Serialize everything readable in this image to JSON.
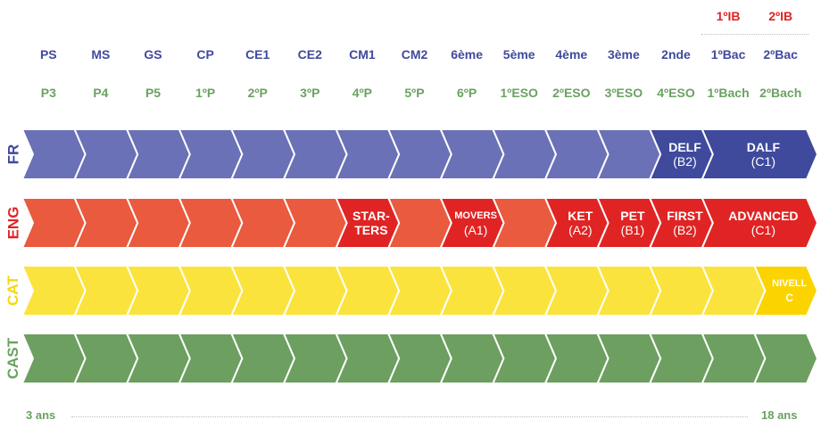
{
  "ib_levels": [
    "1ºIB",
    "2ºIB"
  ],
  "french_levels": [
    "PS",
    "MS",
    "GS",
    "CP",
    "CE1",
    "CE2",
    "CM1",
    "CM2",
    "6ème",
    "5ème",
    "4ème",
    "3ème",
    "2nde",
    "1ºBac",
    "2ºBac"
  ],
  "spanish_levels": [
    "P3",
    "P4",
    "P5",
    "1ºP",
    "2ºP",
    "3ºP",
    "4ºP",
    "5ºP",
    "6ºP",
    "1ºESO",
    "2ºESO",
    "3ºESO",
    "4ºESO",
    "1ºBach",
    "2ºBach"
  ],
  "rows": [
    {
      "label": "FR",
      "label_color": "#3f4a9c",
      "color": "#6a71b6",
      "highlight_color": "#3f4a9c",
      "certs": [
        {
          "start": 12,
          "span": 1,
          "name": "DELF",
          "level": "(B2)"
        },
        {
          "start": 13,
          "span": 2,
          "name": "DALF",
          "level": "(C1)"
        }
      ]
    },
    {
      "label": "ENG",
      "label_color": "#e02424",
      "color": "#e95a3e",
      "highlight_color": "#e02424",
      "certs": [
        {
          "start": 6,
          "span": 1,
          "name": "STAR-",
          "name2": "TERS",
          "level": ""
        },
        {
          "start": 8,
          "span": 1,
          "name": "MOVERS",
          "level": "(A1)",
          "small": true
        },
        {
          "start": 10,
          "span": 1,
          "name": "KET",
          "level": "(A2)"
        },
        {
          "start": 11,
          "span": 1,
          "name": "PET",
          "level": "(B1)"
        },
        {
          "start": 12,
          "span": 1,
          "name": "FIRST",
          "level": "(B2)"
        },
        {
          "start": 13,
          "span": 2,
          "name": "ADVANCED",
          "level": "(C1)"
        }
      ]
    },
    {
      "label": "CAT",
      "label_color": "#f6d80c",
      "color": "#fbe33d",
      "highlight_color": "#fbd400",
      "certs": [
        {
          "start": 14,
          "span": 1,
          "name": "NIVELL",
          "level": "C",
          "small": true,
          "levelBold": true
        }
      ]
    },
    {
      "label": "CAST",
      "label_color": "#6aa261",
      "color": "#6c9f60",
      "highlight_color": "#6c9f60",
      "certs": []
    }
  ],
  "footer": {
    "start": "3 ans",
    "end": "18 ans"
  }
}
